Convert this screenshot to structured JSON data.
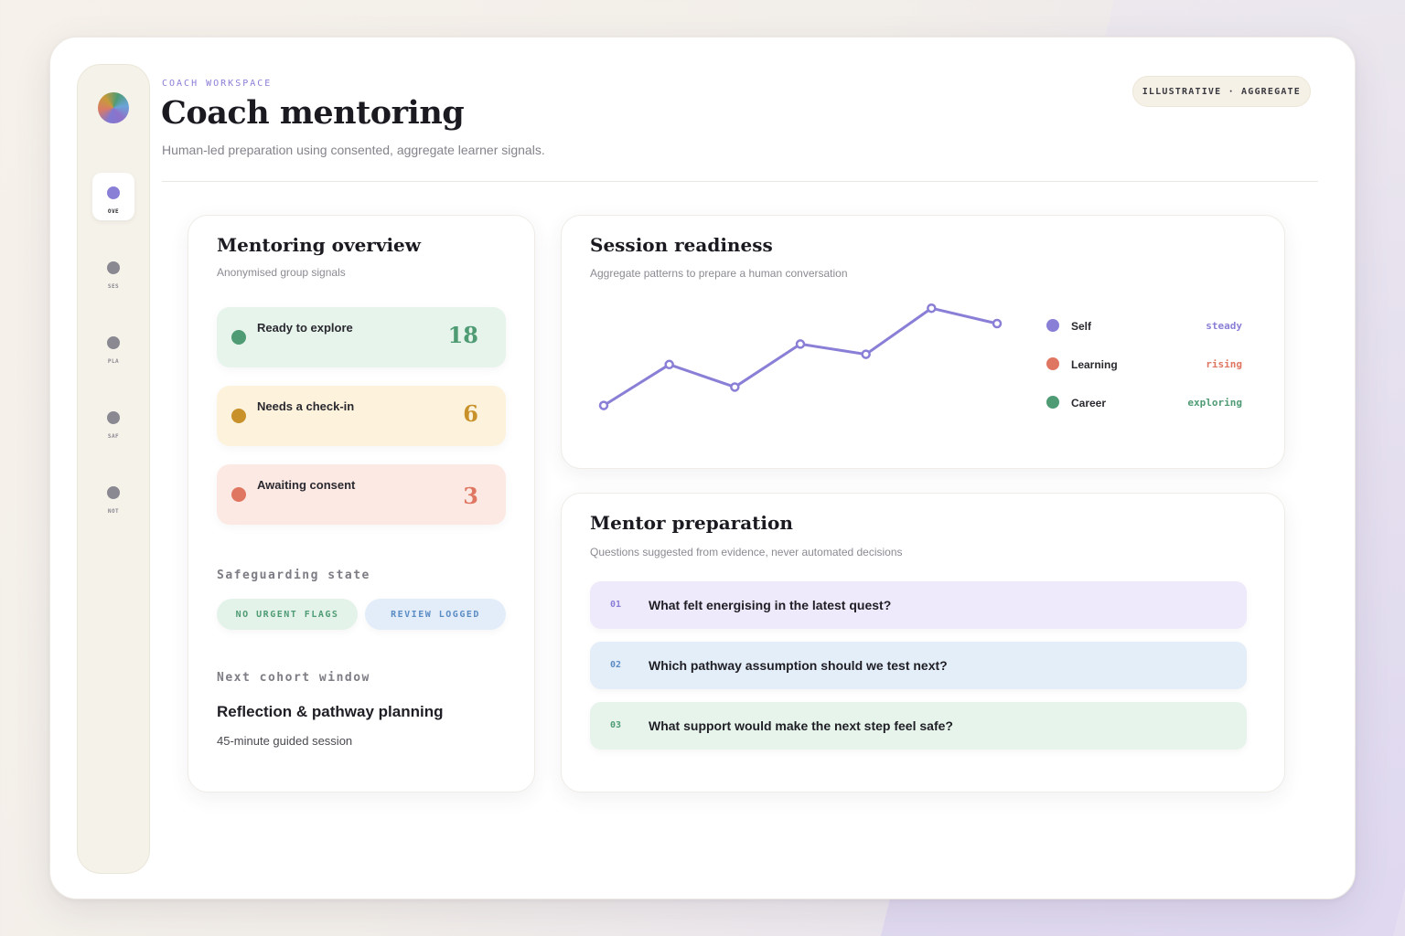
{
  "colors": {
    "accent": "#8a7fd6",
    "green": "#4e9b74",
    "amber": "#c8912a",
    "coral": "#df7661"
  },
  "sidebar": {
    "avatar": "avatar-gradient",
    "items": [
      {
        "label": "OVE",
        "active": true
      },
      {
        "label": "SES",
        "active": false
      },
      {
        "label": "PLA",
        "active": false
      },
      {
        "label": "SAF",
        "active": false
      },
      {
        "label": "NOT",
        "active": false
      }
    ]
  },
  "header": {
    "eyebrow": "COACH WORKSPACE",
    "title": "Coach mentoring",
    "subtitle": "Human-led preparation using consented, aggregate learner signals.",
    "badge": "ILLUSTRATIVE · AGGREGATE"
  },
  "overview": {
    "title": "Mentoring overview",
    "subtitle": "Anonymised group signals",
    "stats": [
      {
        "label": "Ready to explore",
        "value": "18"
      },
      {
        "label": "Needs a check-in",
        "value": "6"
      },
      {
        "label": "Awaiting consent",
        "value": "3"
      }
    ],
    "safeguarding_label": "Safeguarding state",
    "pills": [
      "NO URGENT FLAGS",
      "REVIEW LOGGED"
    ],
    "next_label": "Next cohort window",
    "next_title": "Reflection & pathway planning",
    "next_meta": "45-minute guided session"
  },
  "readiness": {
    "title": "Session readiness",
    "subtitle": "Aggregate patterns to prepare a human conversation",
    "legend": [
      {
        "name": "Self",
        "status": "steady"
      },
      {
        "name": "Learning",
        "status": "rising"
      },
      {
        "name": "Career",
        "status": "exploring"
      }
    ]
  },
  "chart_data": {
    "type": "line",
    "series": [
      {
        "values": [
          0.2,
          0.6,
          0.38,
          0.8,
          0.7,
          1.15,
          1.0
        ]
      }
    ],
    "ylim": [
      0,
      1.25
    ],
    "grid": false
  },
  "prep": {
    "title": "Mentor preparation",
    "subtitle": "Questions suggested from evidence, never automated decisions",
    "questions": [
      {
        "num": "01",
        "text": "What felt energising in the latest quest?"
      },
      {
        "num": "02",
        "text": "Which pathway assumption should we test next?"
      },
      {
        "num": "03",
        "text": "What support would make the next step feel safe?"
      }
    ]
  }
}
